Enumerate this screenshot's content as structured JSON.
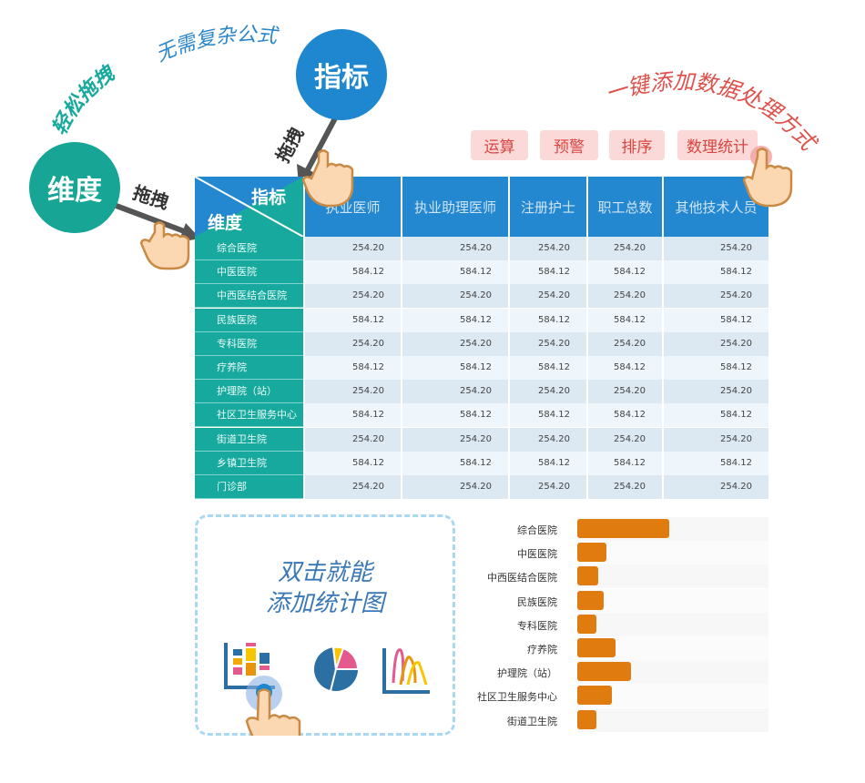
{
  "captions": {
    "drag_easy": "轻松拖拽",
    "no_formula": "无需复杂公式",
    "one_click": "一键添加数据处理方式",
    "drag1": "拖拽",
    "drag2": "拖拽"
  },
  "circles": {
    "dimension": "维度",
    "indicator": "指标"
  },
  "buttons": [
    "运算",
    "预警",
    "排序",
    "数理统计"
  ],
  "table": {
    "corner_indicator": "指标",
    "corner_dimension": "维度",
    "columns": [
      "执业医师",
      "执业助理医师",
      "注册护士",
      "职工总数",
      "其他技术人员"
    ],
    "rows": [
      {
        "label": "综合医院",
        "values": [
          "254.20",
          "254.20",
          "254.20",
          "254.20",
          "254.20"
        ]
      },
      {
        "label": "中医医院",
        "values": [
          "584.12",
          "584.12",
          "584.12",
          "584.12",
          "584.12"
        ]
      },
      {
        "label": "中西医结合医院",
        "values": [
          "254.20",
          "254.20",
          "254.20",
          "254.20",
          "254.20"
        ]
      },
      {
        "label": "民族医院",
        "values": [
          "584.12",
          "584.12",
          "584.12",
          "584.12",
          "584.12"
        ]
      },
      {
        "label": "专科医院",
        "values": [
          "254.20",
          "254.20",
          "254.20",
          "254.20",
          "254.20"
        ]
      },
      {
        "label": "疗养院",
        "values": [
          "584.12",
          "584.12",
          "584.12",
          "584.12",
          "584.12"
        ]
      },
      {
        "label": "护理院（站）",
        "values": [
          "254.20",
          "254.20",
          "254.20",
          "254.20",
          "254.20"
        ]
      },
      {
        "label": "社区卫生服务中心",
        "values": [
          "584.12",
          "584.12",
          "584.12",
          "584.12",
          "584.12"
        ]
      },
      {
        "label": "街道卫生院",
        "values": [
          "254.20",
          "254.20",
          "254.20",
          "254.20",
          "254.20"
        ]
      },
      {
        "label": "乡镇卫生院",
        "values": [
          "584.12",
          "584.12",
          "584.12",
          "584.12",
          "584.12"
        ]
      },
      {
        "label": "门诊部",
        "values": [
          "254.20",
          "254.20",
          "254.20",
          "254.20",
          "254.20"
        ]
      }
    ]
  },
  "promo": {
    "line1": "双击就能",
    "line2": "添加统计图"
  },
  "chart_icons": [
    "stacked-bar-chart-icon",
    "pie-chart-icon",
    "line-chart-icon"
  ],
  "colors": {
    "teal": "#17a99e",
    "blue": "#2388cf",
    "orange": "#e07b10",
    "red": "#d9453f"
  },
  "chart_data": {
    "type": "bar",
    "orientation": "horizontal",
    "categories": [
      "综合医院",
      "中医医院",
      "中西医结合医院",
      "民族医院",
      "专科医院",
      "疗养院",
      "护理院（站）",
      "社区卫生服务中心",
      "街道卫生院"
    ],
    "values_percent_of_track": [
      48,
      15,
      11,
      14,
      10,
      20,
      28,
      18,
      10
    ]
  }
}
